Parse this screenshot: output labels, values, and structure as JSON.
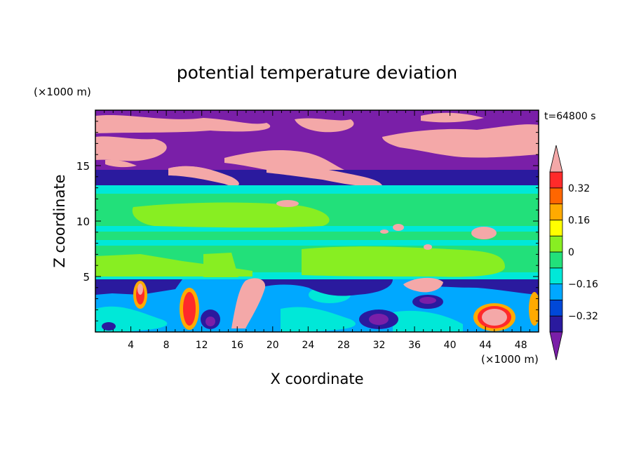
{
  "chart_data": {
    "type": "heatmap",
    "title": "potential temperature deviation",
    "xlabel": "X coordinate",
    "ylabel": "Z coordinate",
    "x_unit": "(×1000 m)",
    "y_unit": "(×1000 m)",
    "time_label": "t=64800 s",
    "xlim": [
      0,
      50
    ],
    "ylim": [
      0,
      20
    ],
    "x_ticks": [
      4,
      8,
      12,
      16,
      20,
      24,
      28,
      32,
      36,
      40,
      44,
      48
    ],
    "y_ticks": [
      5,
      10,
      15
    ],
    "colorbar": {
      "levels": [
        -0.4,
        -0.32,
        -0.24,
        -0.16,
        -0.08,
        0,
        0.08,
        0.16,
        0.24,
        0.32,
        0.4
      ],
      "tick_labels": [
        {
          "value": 0.32,
          "label": "0.32"
        },
        {
          "value": 0.16,
          "label": "0.16"
        },
        {
          "value": 0,
          "label": "0"
        },
        {
          "value": -0.16,
          "label": "−0.16"
        },
        {
          "value": -0.32,
          "label": "−0.32"
        }
      ],
      "colors": [
        "#7a1fa8",
        "#2a1a9e",
        "#0048d8",
        "#00a8ff",
        "#00e8d8",
        "#22e07a",
        "#88ee22",
        "#ffff00",
        "#ffaa00",
        "#ff6600",
        "#ff2a2a",
        "#f4a8a8"
      ],
      "extend": "both"
    },
    "field_description": {
      "layers": [
        {
          "z_range": [
            14,
            20
          ],
          "value": "<= -0.40 with > 0.40 patches"
        },
        {
          "z_range": [
            13,
            14
          ],
          "value": -0.36
        },
        {
          "z_range": [
            5,
            13
          ],
          "value": "-0.08 to 0.08"
        },
        {
          "z_range": [
            0,
            5
          ],
          "value": "mixed -0.40 to > 0.40"
        }
      ]
    }
  }
}
